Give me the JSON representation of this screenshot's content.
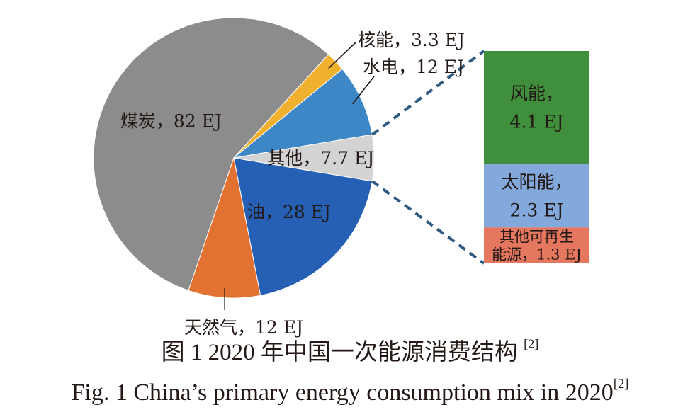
{
  "chart_data": [
    {
      "type": "pie",
      "slices": [
        {
          "label": "煤炭，82 EJ",
          "category": "煤炭",
          "value": 82,
          "color": "#8c8c8c"
        },
        {
          "label": "核能，3.3 EJ",
          "category": "核能",
          "value": 3.3,
          "color": "#efb12e"
        },
        {
          "label": "水电，12 EJ",
          "category": "水电",
          "value": 12,
          "color": "#3d87c6"
        },
        {
          "label": "其他，7.7 EJ",
          "category": "其他",
          "value": 7.7,
          "color": "#d3d3d3"
        },
        {
          "label": "油，28 EJ",
          "category": "油",
          "value": 28,
          "color": "#2560b5"
        },
        {
          "label": "天然气，12 EJ",
          "category": "天然气",
          "value": 12,
          "color": "#e27232"
        }
      ]
    },
    {
      "type": "bar",
      "stacked": true,
      "breakdown_of": "其他，7.7 EJ",
      "segments": [
        {
          "line1": "风能，",
          "line2": "4.1 EJ",
          "category": "风能",
          "value": 4.1,
          "color": "#3f8f3c"
        },
        {
          "line1": "太阳能，",
          "line2": "2.3 EJ",
          "category": "太阳能",
          "value": 2.3,
          "color": "#83a9dc"
        },
        {
          "line1": "其他可再生",
          "line2": "能源，1.3 EJ",
          "category": "其他可再生能源",
          "value": 1.3,
          "color": "#e4775e"
        }
      ]
    }
  ],
  "caption_cn": {
    "text": "图 1 2020 年中国一次能源消费结构 ",
    "ref": "[2]"
  },
  "caption_en": {
    "text": "Fig. 1  China’s primary energy consumption mix in 2020",
    "ref": "[2]"
  }
}
